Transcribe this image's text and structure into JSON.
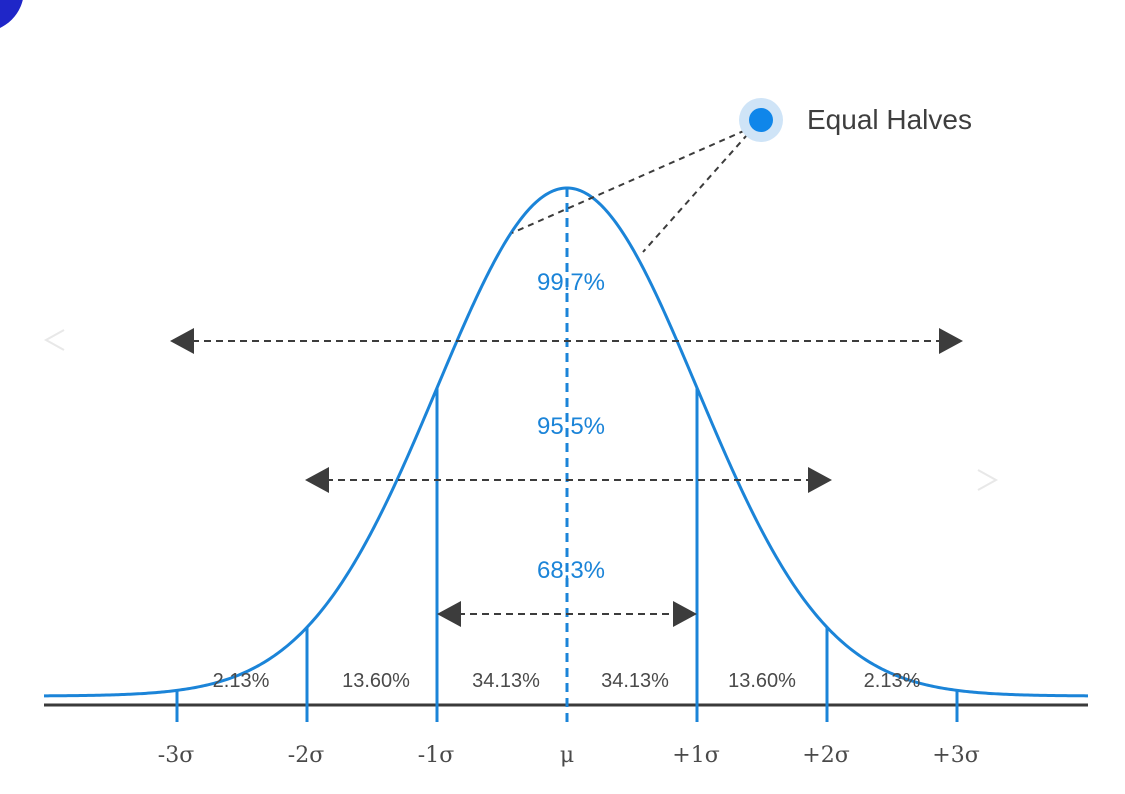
{
  "colors": {
    "curve": "#1b84d8",
    "range_text": "#1b84d8",
    "axis": "#3a3a3a",
    "arrow": "#3c3c3c",
    "text": "#4a4a4a",
    "dot": "#0f86ea",
    "dot_halo": "#cfe4f7",
    "corner_badge": "#1f26c8"
  },
  "x_ticks": [
    "-3σ",
    "-2σ",
    "-1σ",
    "μ",
    "+1σ",
    "+2σ",
    "+3σ"
  ],
  "regions": [
    "2.13%",
    "13.60%",
    "34.13%",
    "34.13%",
    "13.60%",
    "2.13%"
  ],
  "ranges": [
    {
      "label": "99.7%",
      "from": -3,
      "to": 3
    },
    {
      "label": "95.5%",
      "from": -2,
      "to": 2
    },
    {
      "label": "68.3%",
      "from": -1,
      "to": 1
    }
  ],
  "callout": {
    "label": "Equal Halves",
    "icon": "dot-marker-icon"
  },
  "nav": {
    "prev_icon": "chevron-left-icon",
    "next_icon": "chevron-right-icon"
  }
}
